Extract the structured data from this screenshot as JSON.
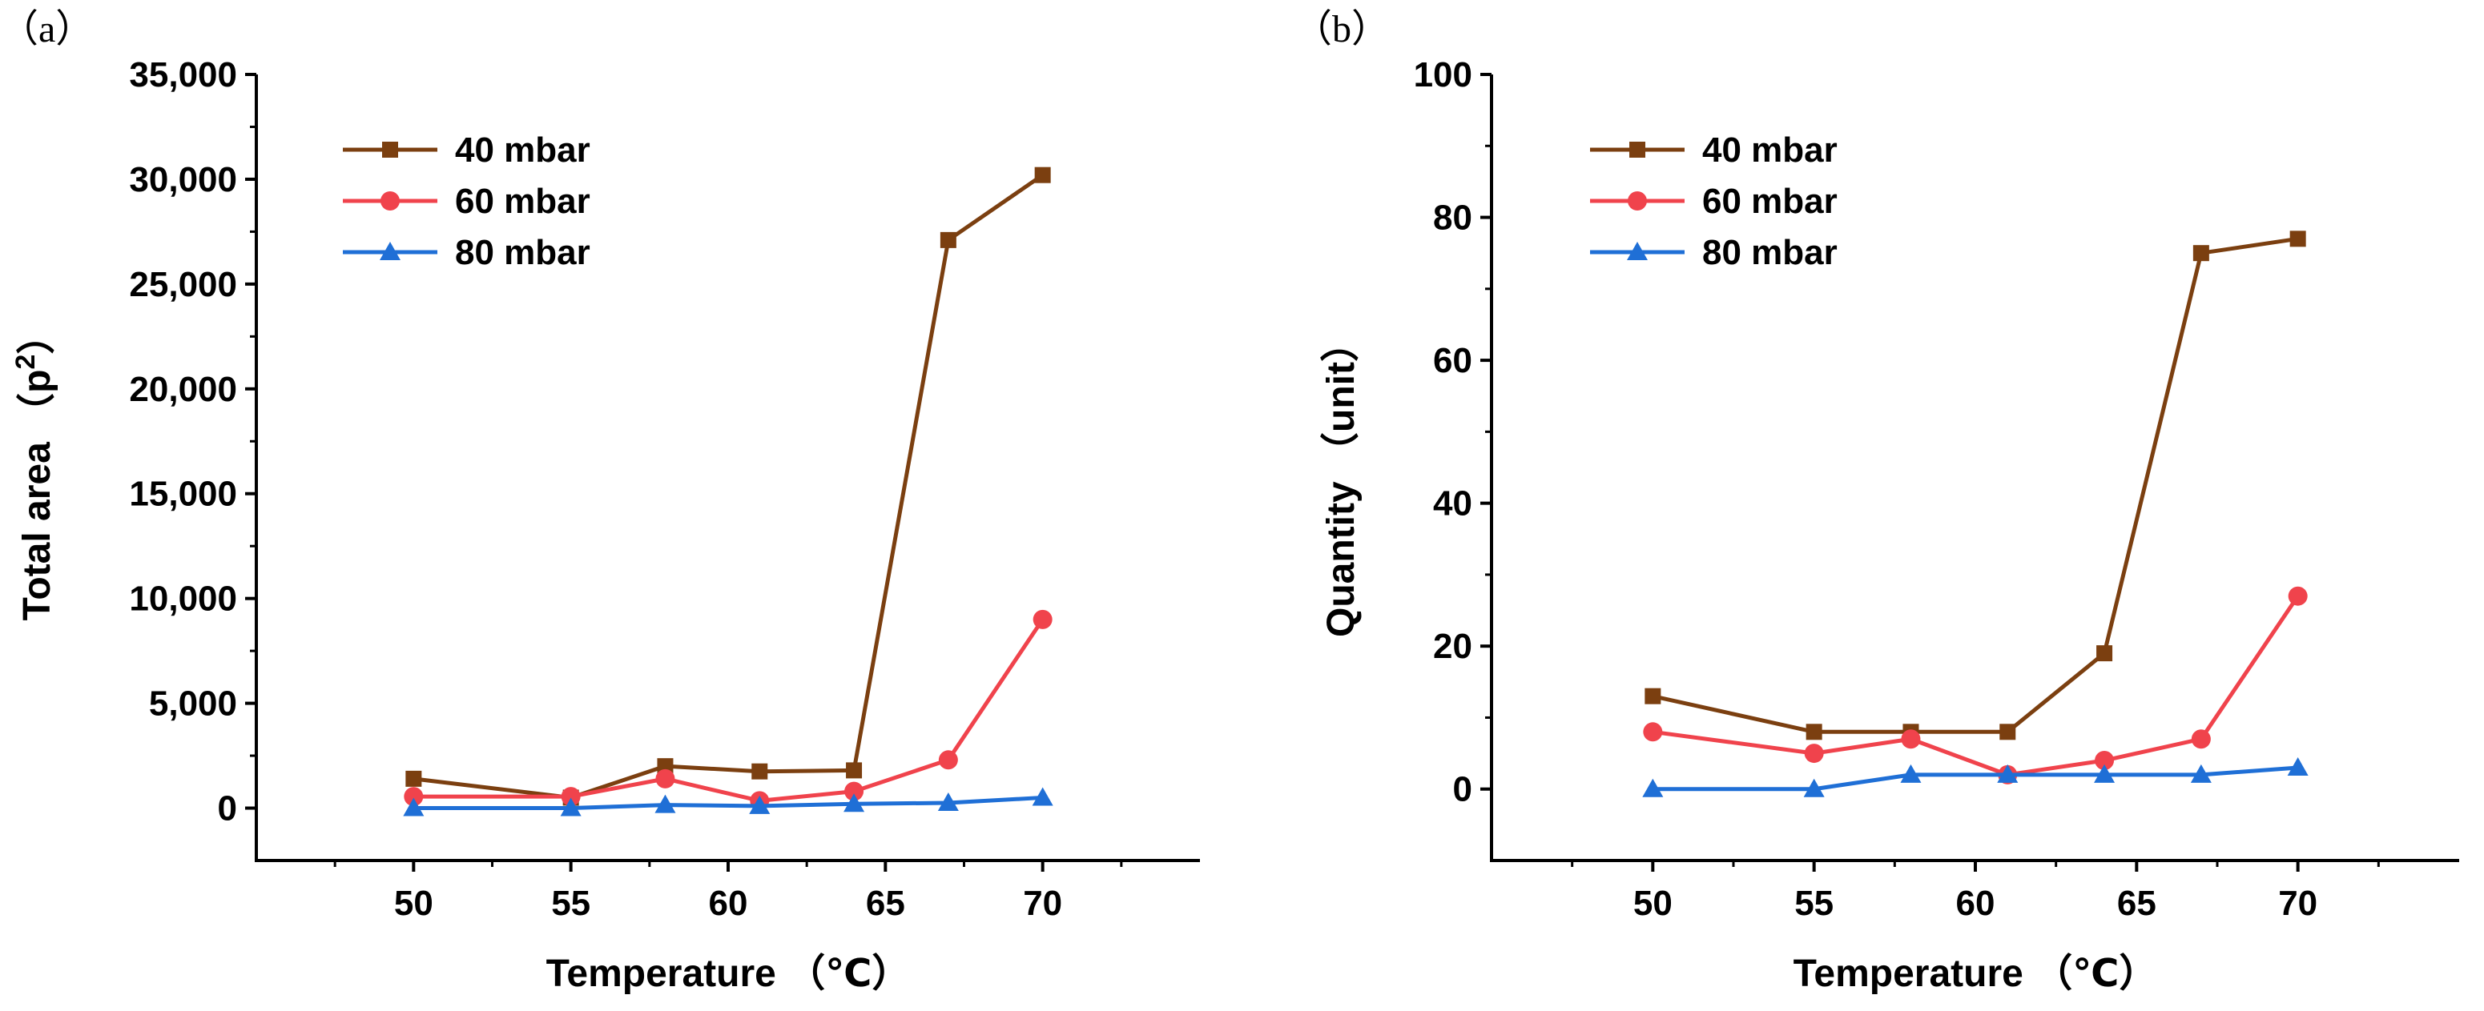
{
  "chart_data": [
    {
      "type": "line",
      "panel_label": "（a）",
      "x": [
        50,
        55,
        58,
        61,
        64,
        67,
        70
      ],
      "xlim": [
        45,
        75
      ],
      "ylim": [
        -2500,
        35000
      ],
      "xticks": [
        50,
        55,
        60,
        65,
        70
      ],
      "yticks": [
        0,
        5000,
        10000,
        15000,
        20000,
        25000,
        30000,
        35000
      ],
      "ytick_labels": [
        "0",
        "5,000",
        "10,000",
        "15,000",
        "20,000",
        "25,000",
        "30,000",
        "35,000"
      ],
      "xlabel": "Temperature （℃）",
      "ylabel_main": "Total area （p",
      "ylabel_sup": "2",
      "ylabel_close": "）",
      "legend_position": "top-left",
      "series": [
        {
          "name": "40 mbar",
          "color": "#7b3f10",
          "marker": "square",
          "values": [
            1400,
            500,
            2000,
            1750,
            1800,
            27100,
            30200
          ]
        },
        {
          "name": "60 mbar",
          "color": "#f0434c",
          "marker": "circle",
          "values": [
            550,
            550,
            1400,
            350,
            800,
            2300,
            9000
          ]
        },
        {
          "name": "80 mbar",
          "color": "#1f6fd6",
          "marker": "triangle",
          "values": [
            0,
            0,
            150,
            100,
            200,
            250,
            500
          ]
        }
      ]
    },
    {
      "type": "line",
      "panel_label": "（b）",
      "x": [
        50,
        55,
        58,
        61,
        64,
        67,
        70
      ],
      "xlim": [
        45,
        75
      ],
      "ylim": [
        -10,
        100
      ],
      "xticks": [
        50,
        55,
        60,
        65,
        70
      ],
      "yticks": [
        0,
        20,
        40,
        60,
        80,
        100
      ],
      "ytick_labels": [
        "0",
        "20",
        "40",
        "60",
        "80",
        "100"
      ],
      "xlabel": "Temperature （℃）",
      "ylabel_main": "Quantity （unit）",
      "ylabel_sup": "",
      "ylabel_close": "",
      "legend_position": "top-left",
      "series": [
        {
          "name": "40 mbar",
          "color": "#7b3f10",
          "marker": "square",
          "values": [
            13,
            8,
            8,
            8,
            19,
            75,
            77
          ]
        },
        {
          "name": "60 mbar",
          "color": "#f0434c",
          "marker": "circle",
          "values": [
            8,
            5,
            7,
            2,
            4,
            7,
            27
          ]
        },
        {
          "name": "80 mbar",
          "color": "#1f6fd6",
          "marker": "triangle",
          "values": [
            0,
            0,
            2,
            2,
            2,
            2,
            3
          ]
        }
      ]
    }
  ]
}
